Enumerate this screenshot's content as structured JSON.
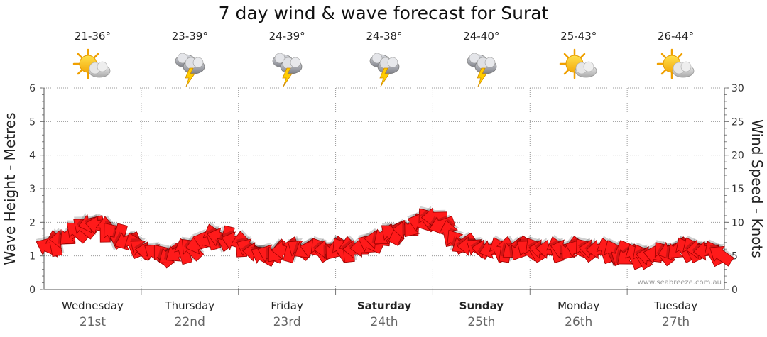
{
  "title": "7 day wind & wave forecast for Surat",
  "watermark": "www.seabreeze.com.au",
  "colors": {
    "arrow": "#ff1a1a",
    "arrow_stroke": "#9b0000",
    "grid": "#999999"
  },
  "days": [
    {
      "name": "Wednesday",
      "date": "21st",
      "temp": "21-36°",
      "icon": "sun-cloud-icon",
      "bold": false
    },
    {
      "name": "Thursday",
      "date": "22nd",
      "temp": "23-39°",
      "icon": "storm-cloud-icon",
      "bold": false
    },
    {
      "name": "Friday",
      "date": "23rd",
      "temp": "24-39°",
      "icon": "storm-cloud-icon",
      "bold": false
    },
    {
      "name": "Saturday",
      "date": "24th",
      "temp": "24-38°",
      "icon": "storm-cloud-icon",
      "bold": true
    },
    {
      "name": "Sunday",
      "date": "25th",
      "temp": "24-40°",
      "icon": "storm-cloud-icon",
      "bold": true
    },
    {
      "name": "Monday",
      "date": "26th",
      "temp": "25-43°",
      "icon": "sun-cloud-icon",
      "bold": false
    },
    {
      "name": "Tuesday",
      "date": "27th",
      "temp": "26-44°",
      "icon": "sun-cloud-icon",
      "bold": false
    }
  ],
  "chart_data": {
    "type": "line",
    "ylabel_left": "Wave Height - Metres",
    "ylabel_right": "Wind Speed - Knots",
    "left_ticks": [
      "0",
      "1",
      "2",
      "3",
      "4",
      "5",
      "6"
    ],
    "right_ticks": [
      "0",
      "5",
      "10",
      "15",
      "20",
      "25",
      "30"
    ],
    "ylim_left": [
      0,
      6
    ],
    "ylim_right": [
      0,
      30
    ],
    "grid": true,
    "series": [
      {
        "name": "Wind Speed - Knots",
        "style": "arrows",
        "x_days": [
          0.0,
          0.25,
          0.5,
          0.75,
          1.0,
          1.25,
          1.5,
          1.75,
          2.0,
          2.25,
          2.5,
          2.75,
          3.0,
          3.25,
          3.5,
          3.75,
          4.0,
          4.25,
          4.5,
          4.75,
          5.0,
          5.25,
          5.5,
          5.75,
          6.0,
          6.25,
          6.5,
          6.75,
          7.0
        ],
        "values": [
          6,
          8,
          10,
          8,
          6,
          5,
          6,
          8,
          7,
          5,
          6,
          6,
          6,
          6,
          8,
          9,
          11,
          7,
          6,
          6,
          6,
          6,
          6,
          6,
          5,
          5,
          6,
          6,
          5
        ]
      }
    ]
  }
}
